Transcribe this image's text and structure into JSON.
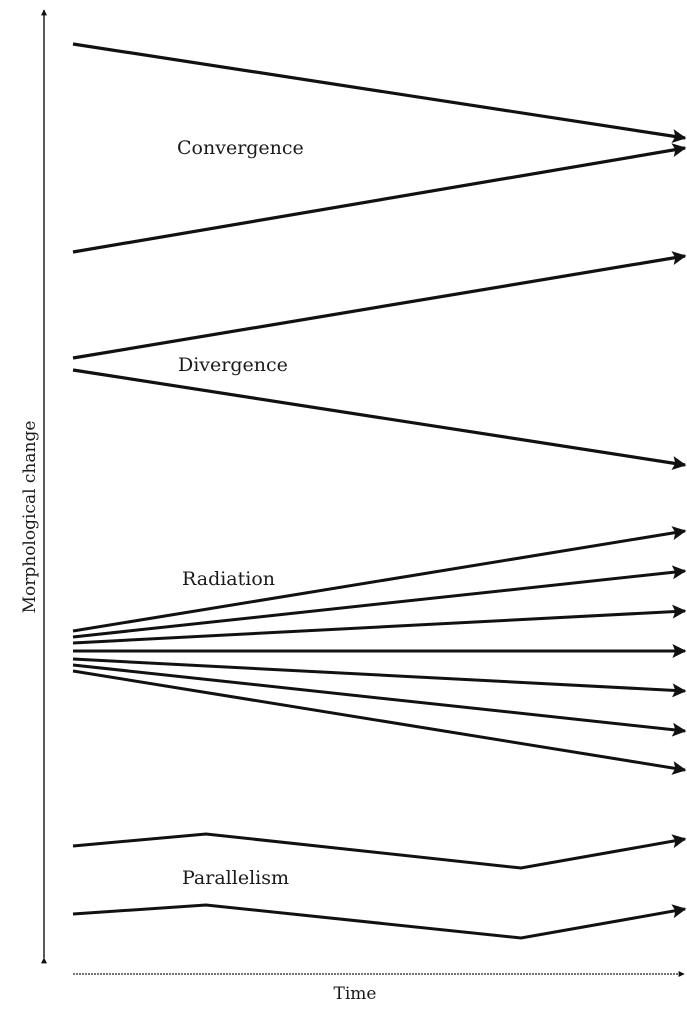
{
  "figure": {
    "y_axis_label": "Morphological change",
    "x_axis_label": "Time",
    "patterns": [
      {
        "id": "convergence",
        "label": "Convergence",
        "lineage_count": 2,
        "shape": "two lineages approach one endpoint"
      },
      {
        "id": "divergence",
        "label": "Divergence",
        "lineage_count": 2,
        "shape": "two lineages from one origin move apart"
      },
      {
        "id": "radiation",
        "label": "Radiation",
        "lineage_count": 7,
        "shape": "many lineages fan out from one origin"
      },
      {
        "id": "parallelism",
        "label": "Parallelism",
        "lineage_count": 2,
        "shape": "two lineages follow the same zig-zag course"
      }
    ]
  },
  "colors": {
    "stroke": "#111111",
    "background": "#ffffff"
  }
}
